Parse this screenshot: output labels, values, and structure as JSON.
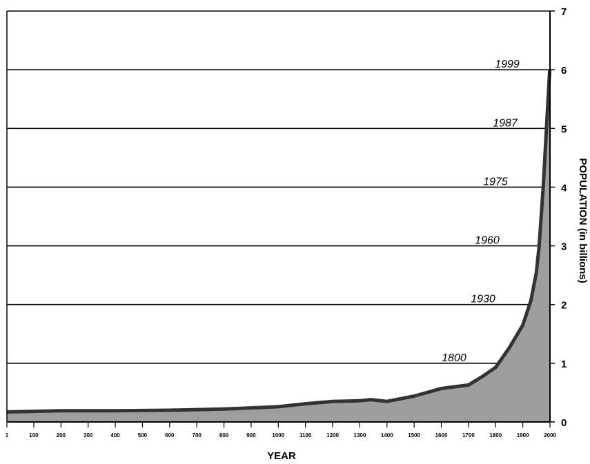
{
  "chart_data": {
    "type": "area",
    "title": "",
    "xlabel": "YEAR",
    "ylabel": "POPULATION (in billions)",
    "xlim": [
      1,
      2000
    ],
    "ylim": [
      0,
      7
    ],
    "grid": "horizontal",
    "x_ticks": [
      1,
      100,
      200,
      300,
      400,
      500,
      600,
      700,
      800,
      900,
      1000,
      1100,
      1200,
      1300,
      1400,
      1500,
      1600,
      1700,
      1800,
      1900,
      2000
    ],
    "x_tick_labels": [
      "1",
      "100",
      "200",
      "300",
      "400",
      "500",
      "600",
      "700",
      "800",
      "900",
      "1000",
      "1100",
      "1200",
      "1300",
      "1400",
      "1500",
      "1600",
      "1700",
      "1800",
      "1900",
      "2000"
    ],
    "y_ticks": [
      0,
      1,
      2,
      3,
      4,
      5,
      6,
      7
    ],
    "y_tick_labels": [
      "0",
      "1",
      "2",
      "3",
      "4",
      "5",
      "6",
      "7"
    ],
    "x": [
      1,
      200,
      400,
      600,
      800,
      1000,
      1100,
      1200,
      1300,
      1340,
      1400,
      1500,
      1600,
      1700,
      1750,
      1800,
      1850,
      1900,
      1930,
      1950,
      1960,
      1975,
      1987,
      1999
    ],
    "y": [
      0.17,
      0.19,
      0.19,
      0.2,
      0.22,
      0.26,
      0.31,
      0.35,
      0.36,
      0.38,
      0.35,
      0.44,
      0.57,
      0.63,
      0.77,
      0.93,
      1.26,
      1.65,
      2.07,
      2.55,
      3.0,
      4.0,
      5.0,
      6.0
    ],
    "annotations": [
      {
        "label": "1800",
        "value": 1
      },
      {
        "label": "1930",
        "value": 2
      },
      {
        "label": "1960",
        "value": 3
      },
      {
        "label": "1975",
        "value": 4
      },
      {
        "label": "1987",
        "value": 5
      },
      {
        "label": "1999",
        "value": 6
      }
    ],
    "fill_color": "#9e9e9e",
    "line_color": "#333333"
  }
}
